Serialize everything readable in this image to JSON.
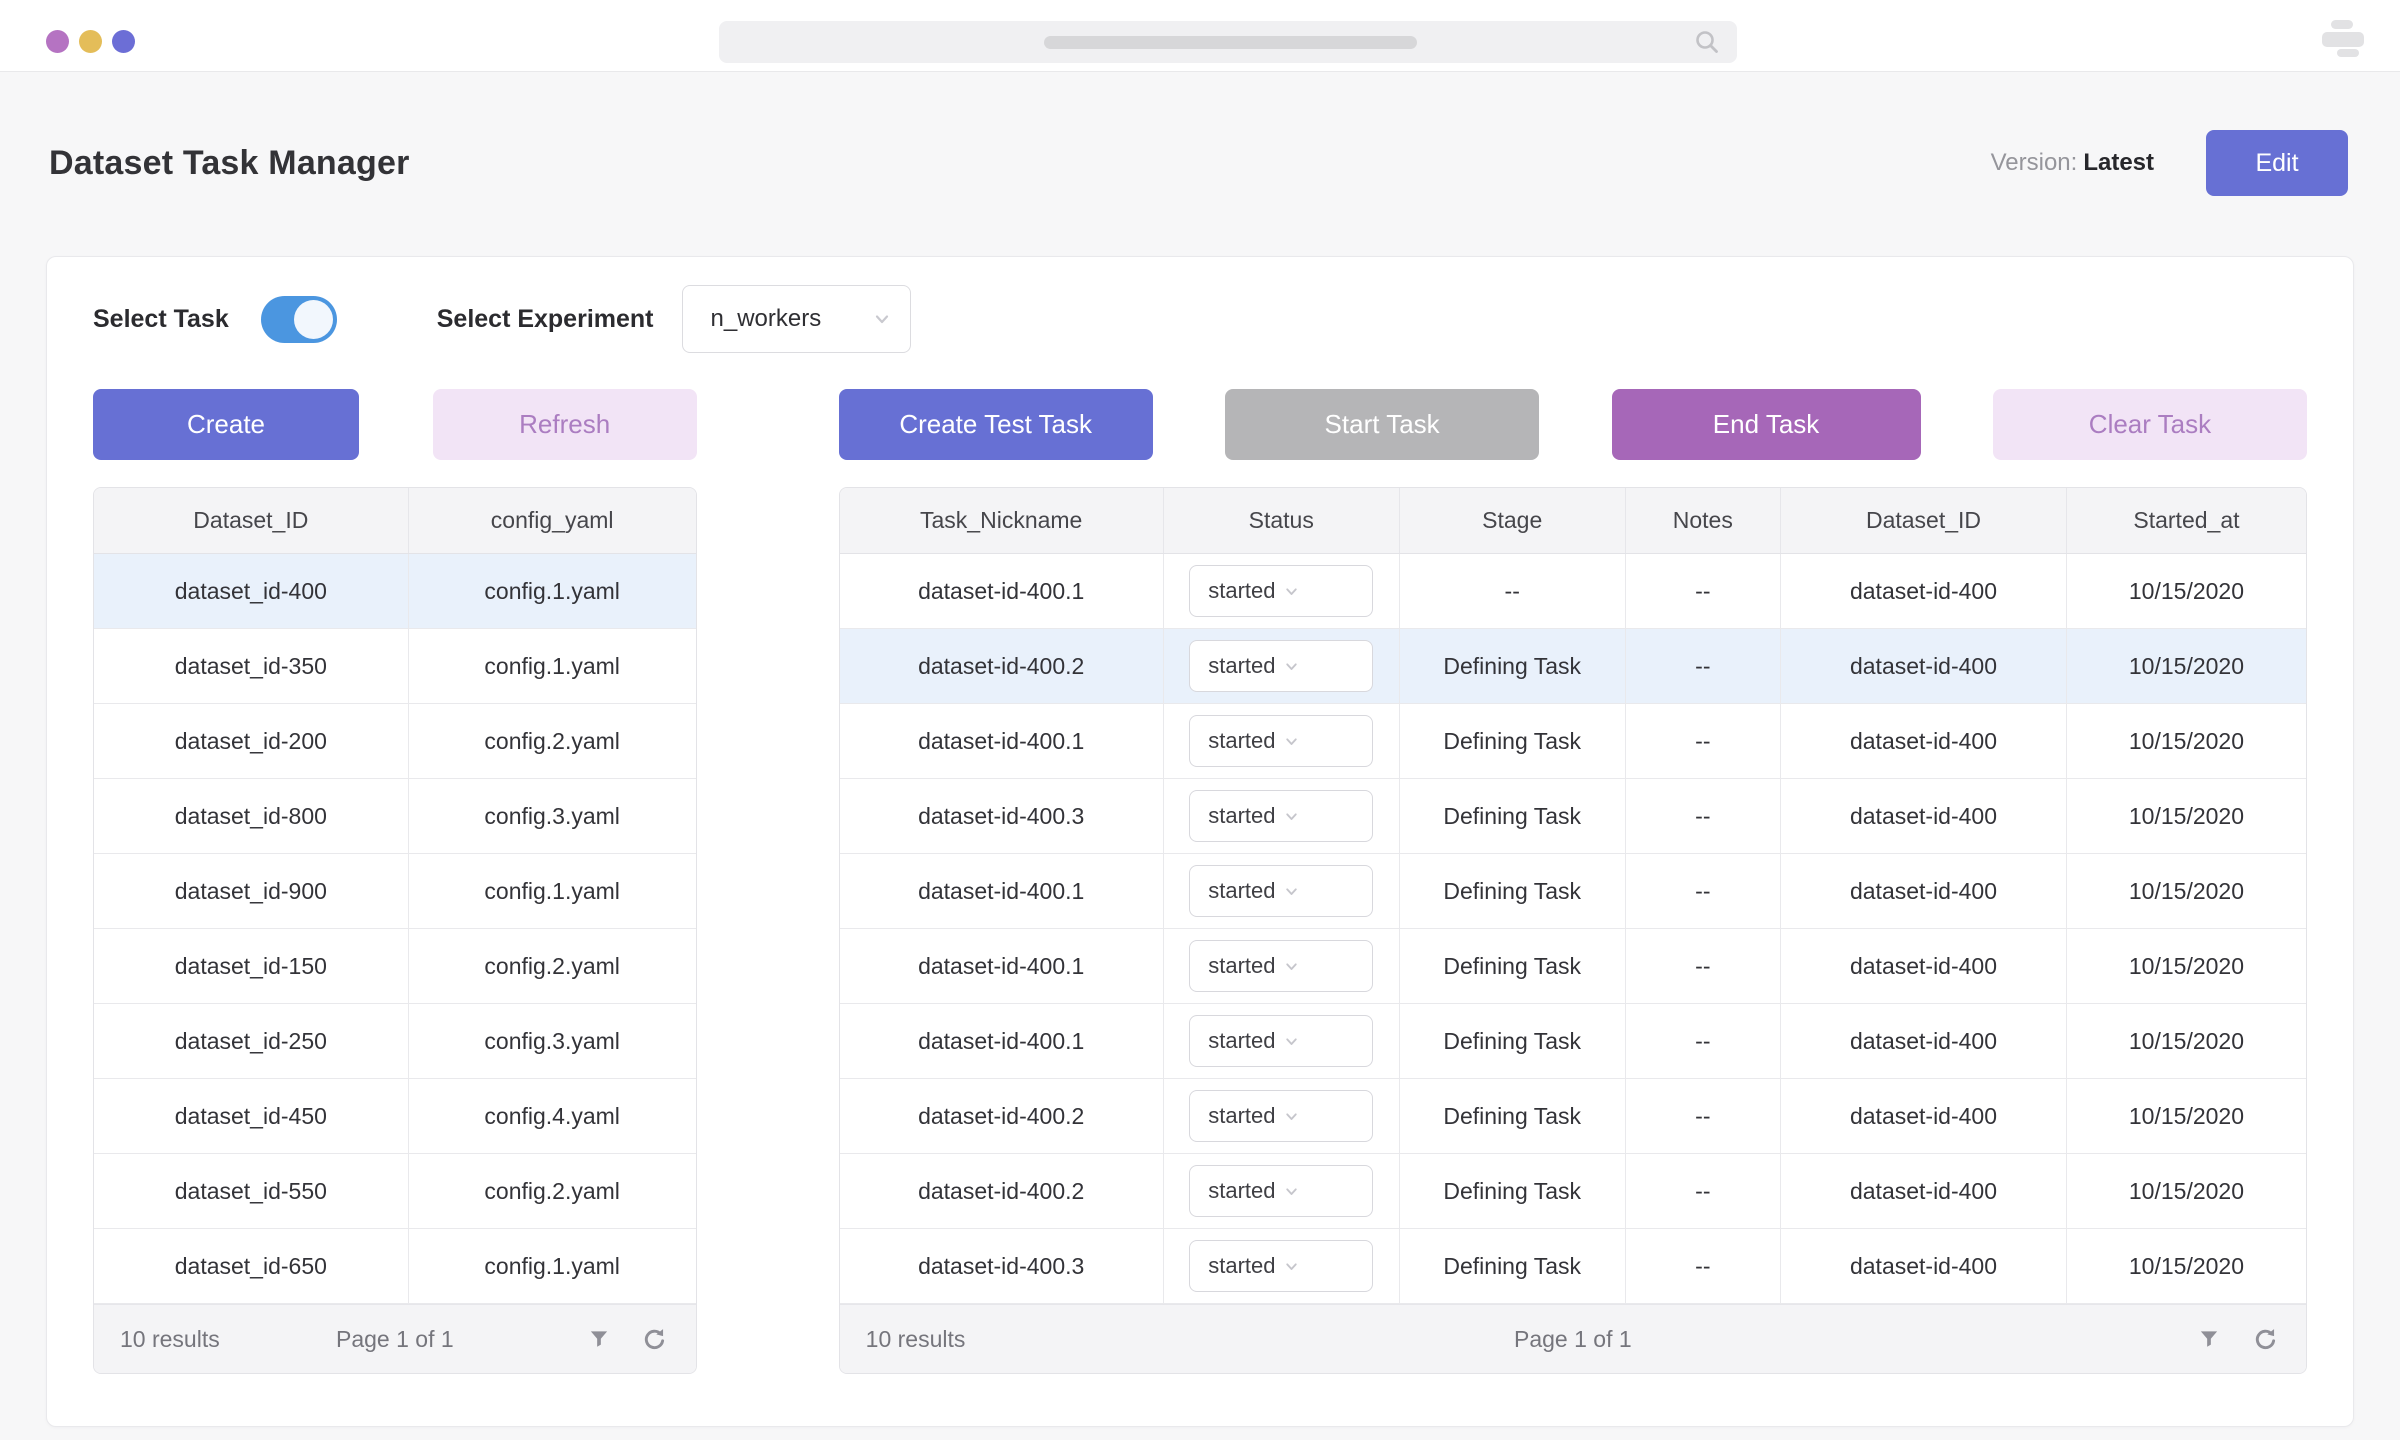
{
  "window": {
    "traffic_lights": [
      "purple",
      "yellow",
      "indigo"
    ]
  },
  "icons": {
    "search": "magnifier-glyph",
    "filter": "funnel-glyph",
    "refresh": "circular-arrow-glyph",
    "chevron": "chevron-down-glyph",
    "window_menu": "stacked-lines-glyph"
  },
  "colors": {
    "primary": "#6770d4",
    "primary_soft_bg": "#f2e4f6",
    "primary_soft_text": "#ab7dc1",
    "disabled_gray": "#b5b5b7",
    "magenta": "#a667b8",
    "toggle_on_blue": "#4b96e0",
    "row_highlight": "#e9f1fb"
  },
  "header": {
    "title": "Dataset Task Manager",
    "version_label": "Version:",
    "version_value": "Latest",
    "edit_button": "Edit"
  },
  "controls": {
    "select_task_label": "Select Task",
    "select_task_on": true,
    "select_experiment_label": "Select Experiment",
    "experiment_value": "n_workers",
    "buttons": [
      {
        "label": "Create"
      },
      {
        "label": "Refresh"
      },
      {
        "label": "Create Test Task"
      },
      {
        "label": "Start Task"
      },
      {
        "label": "End Task"
      },
      {
        "label": "Clear Task"
      }
    ]
  },
  "datasets_table": {
    "columns": [
      "Dataset_ID",
      "config_yaml"
    ],
    "selected_row": 0,
    "rows": [
      {
        "dataset_id": "dataset_id-400",
        "config_yaml": "config.1.yaml"
      },
      {
        "dataset_id": "dataset_id-350",
        "config_yaml": "config.1.yaml"
      },
      {
        "dataset_id": "dataset_id-200",
        "config_yaml": "config.2.yaml"
      },
      {
        "dataset_id": "dataset_id-800",
        "config_yaml": "config.3.yaml"
      },
      {
        "dataset_id": "dataset_id-900",
        "config_yaml": "config.1.yaml"
      },
      {
        "dataset_id": "dataset_id-150",
        "config_yaml": "config.2.yaml"
      },
      {
        "dataset_id": "dataset_id-250",
        "config_yaml": "config.3.yaml"
      },
      {
        "dataset_id": "dataset_id-450",
        "config_yaml": "config.4.yaml"
      },
      {
        "dataset_id": "dataset_id-550",
        "config_yaml": "config.2.yaml"
      },
      {
        "dataset_id": "dataset_id-650",
        "config_yaml": "config.1.yaml"
      }
    ],
    "footer": {
      "results": "10 results",
      "page": "Page 1 of 1"
    }
  },
  "tasks_table": {
    "columns": [
      "Task_Nickname",
      "Status",
      "Stage",
      "Notes",
      "Dataset_ID",
      "Started_at"
    ],
    "selected_row": 1,
    "rows": [
      {
        "nickname": "dataset-id-400.1",
        "status": "started",
        "stage": "--",
        "notes": "--",
        "dataset_id": "dataset-id-400",
        "started_at": "10/15/2020"
      },
      {
        "nickname": "dataset-id-400.2",
        "status": "started",
        "stage": "Defining Task",
        "notes": "--",
        "dataset_id": "dataset-id-400",
        "started_at": "10/15/2020"
      },
      {
        "nickname": "dataset-id-400.1",
        "status": "started",
        "stage": "Defining Task",
        "notes": "--",
        "dataset_id": "dataset-id-400",
        "started_at": "10/15/2020"
      },
      {
        "nickname": "dataset-id-400.3",
        "status": "started",
        "stage": "Defining Task",
        "notes": "--",
        "dataset_id": "dataset-id-400",
        "started_at": "10/15/2020"
      },
      {
        "nickname": "dataset-id-400.1",
        "status": "started",
        "stage": "Defining Task",
        "notes": "--",
        "dataset_id": "dataset-id-400",
        "started_at": "10/15/2020"
      },
      {
        "nickname": "dataset-id-400.1",
        "status": "started",
        "stage": "Defining Task",
        "notes": "--",
        "dataset_id": "dataset-id-400",
        "started_at": "10/15/2020"
      },
      {
        "nickname": "dataset-id-400.1",
        "status": "started",
        "stage": "Defining Task",
        "notes": "--",
        "dataset_id": "dataset-id-400",
        "started_at": "10/15/2020"
      },
      {
        "nickname": "dataset-id-400.2",
        "status": "started",
        "stage": "Defining Task",
        "notes": "--",
        "dataset_id": "dataset-id-400",
        "started_at": "10/15/2020"
      },
      {
        "nickname": "dataset-id-400.2",
        "status": "started",
        "stage": "Defining Task",
        "notes": "--",
        "dataset_id": "dataset-id-400",
        "started_at": "10/15/2020"
      },
      {
        "nickname": "dataset-id-400.3",
        "status": "started",
        "stage": "Defining Task",
        "notes": "--",
        "dataset_id": "dataset-id-400",
        "started_at": "10/15/2020"
      }
    ],
    "footer": {
      "results": "10 results",
      "page": "Page 1 of 1"
    }
  }
}
